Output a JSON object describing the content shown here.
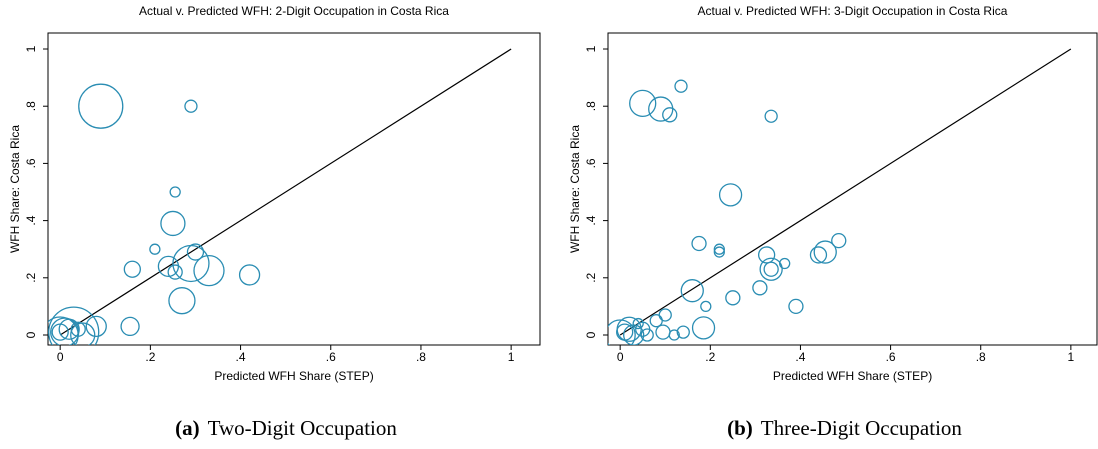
{
  "chart_data": [
    {
      "type": "scatter",
      "title": "Actual v. Predicted WFH: 2-Digit Occupation in Costa Rica",
      "x_label": "Predicted WFH Share (STEP)",
      "y_label": "WFH Share: Costa Rica",
      "caption_label": "(a)",
      "caption": "Two-Digit Occupation",
      "color": "#2a8db3",
      "xlim": [
        -0.027,
        1.064
      ],
      "ylim": [
        -0.035,
        1.056
      ],
      "xticks": [
        0,
        {
          "value": 0.2,
          "label": ".2"
        },
        {
          "value": 0.4,
          "label": ".4"
        },
        {
          "value": 0.6,
          "label": ".6"
        },
        {
          "value": 0.8,
          "label": ".8"
        },
        1
      ],
      "yticks": [
        0,
        {
          "value": 0.2,
          "label": ".2"
        },
        {
          "value": 0.4,
          "label": ".4"
        },
        {
          "value": 0.6,
          "label": ".6"
        },
        {
          "value": 0.8,
          "label": ".8"
        },
        1
      ],
      "x": [
        0.09,
        0.29,
        0.255,
        0.25,
        0.21,
        0.3,
        0.29,
        0.24,
        0.255,
        0.33,
        0.42,
        0.16,
        0.27,
        0.155,
        0.08,
        0.03,
        0.0,
        0.01,
        0.05,
        0.02,
        0.0,
        0.04
      ],
      "values": [
        0.8,
        0.8,
        0.5,
        0.39,
        0.3,
        0.29,
        0.25,
        0.24,
        0.22,
        0.225,
        0.21,
        0.23,
        0.12,
        0.03,
        0.03,
        0.01,
        0.0,
        0.01,
        0.0,
        0.02,
        0.01,
        0.02
      ],
      "sizes": [
        22,
        6,
        5,
        12,
        5,
        8,
        18,
        10,
        7,
        15,
        10,
        8,
        13,
        9,
        10,
        25,
        18,
        14,
        12,
        10,
        8,
        7
      ]
    },
    {
      "type": "scatter",
      "title": "Actual v. Predicted WFH: 3-Digit Occupation in Costa Rica",
      "x_label": "Predicted WFH Share (STEP)",
      "y_label": "WFH Share: Costa Rica",
      "caption_label": "(b)",
      "caption": "Three-Digit Occupation",
      "color": "#2a8db3",
      "xlim": [
        -0.027,
        1.058
      ],
      "ylim": [
        -0.035,
        1.056
      ],
      "xticks": [
        0,
        {
          "value": 0.2,
          "label": ".2"
        },
        {
          "value": 0.4,
          "label": ".4"
        },
        {
          "value": 0.6,
          "label": ".6"
        },
        {
          "value": 0.8,
          "label": ".8"
        },
        1
      ],
      "yticks": [
        0,
        {
          "value": 0.2,
          "label": ".2"
        },
        {
          "value": 0.4,
          "label": ".4"
        },
        {
          "value": 0.6,
          "label": ".6"
        },
        {
          "value": 0.8,
          "label": ".8"
        },
        1
      ],
      "x": [
        0.05,
        0.09,
        0.11,
        0.135,
        0.335,
        0.245,
        0.175,
        0.22,
        0.22,
        0.325,
        0.335,
        0.335,
        0.365,
        0.44,
        0.455,
        0.485,
        0.16,
        0.25,
        0.31,
        0.19,
        0.39,
        0.185,
        0.1,
        0.08,
        0.12,
        0.14,
        0.095,
        0.0,
        0.02,
        0.03,
        0.01,
        0.05,
        0.06,
        0.04
      ],
      "values": [
        0.81,
        0.79,
        0.77,
        0.87,
        0.765,
        0.49,
        0.32,
        0.3,
        0.29,
        0.28,
        0.23,
        0.23,
        0.25,
        0.28,
        0.29,
        0.33,
        0.155,
        0.13,
        0.165,
        0.1,
        0.1,
        0.025,
        0.07,
        0.05,
        0.0,
        0.01,
        0.01,
        0.0,
        0.02,
        0.0,
        0.01,
        0.02,
        0.0,
        0.04
      ],
      "sizes": [
        13,
        12,
        7,
        6,
        6,
        11,
        7,
        5,
        5,
        8,
        11,
        7,
        5,
        8,
        11,
        7,
        11,
        7,
        7,
        5,
        7,
        11,
        6,
        6,
        5,
        6,
        7,
        15,
        12,
        10,
        8,
        7,
        6,
        5
      ]
    }
  ]
}
